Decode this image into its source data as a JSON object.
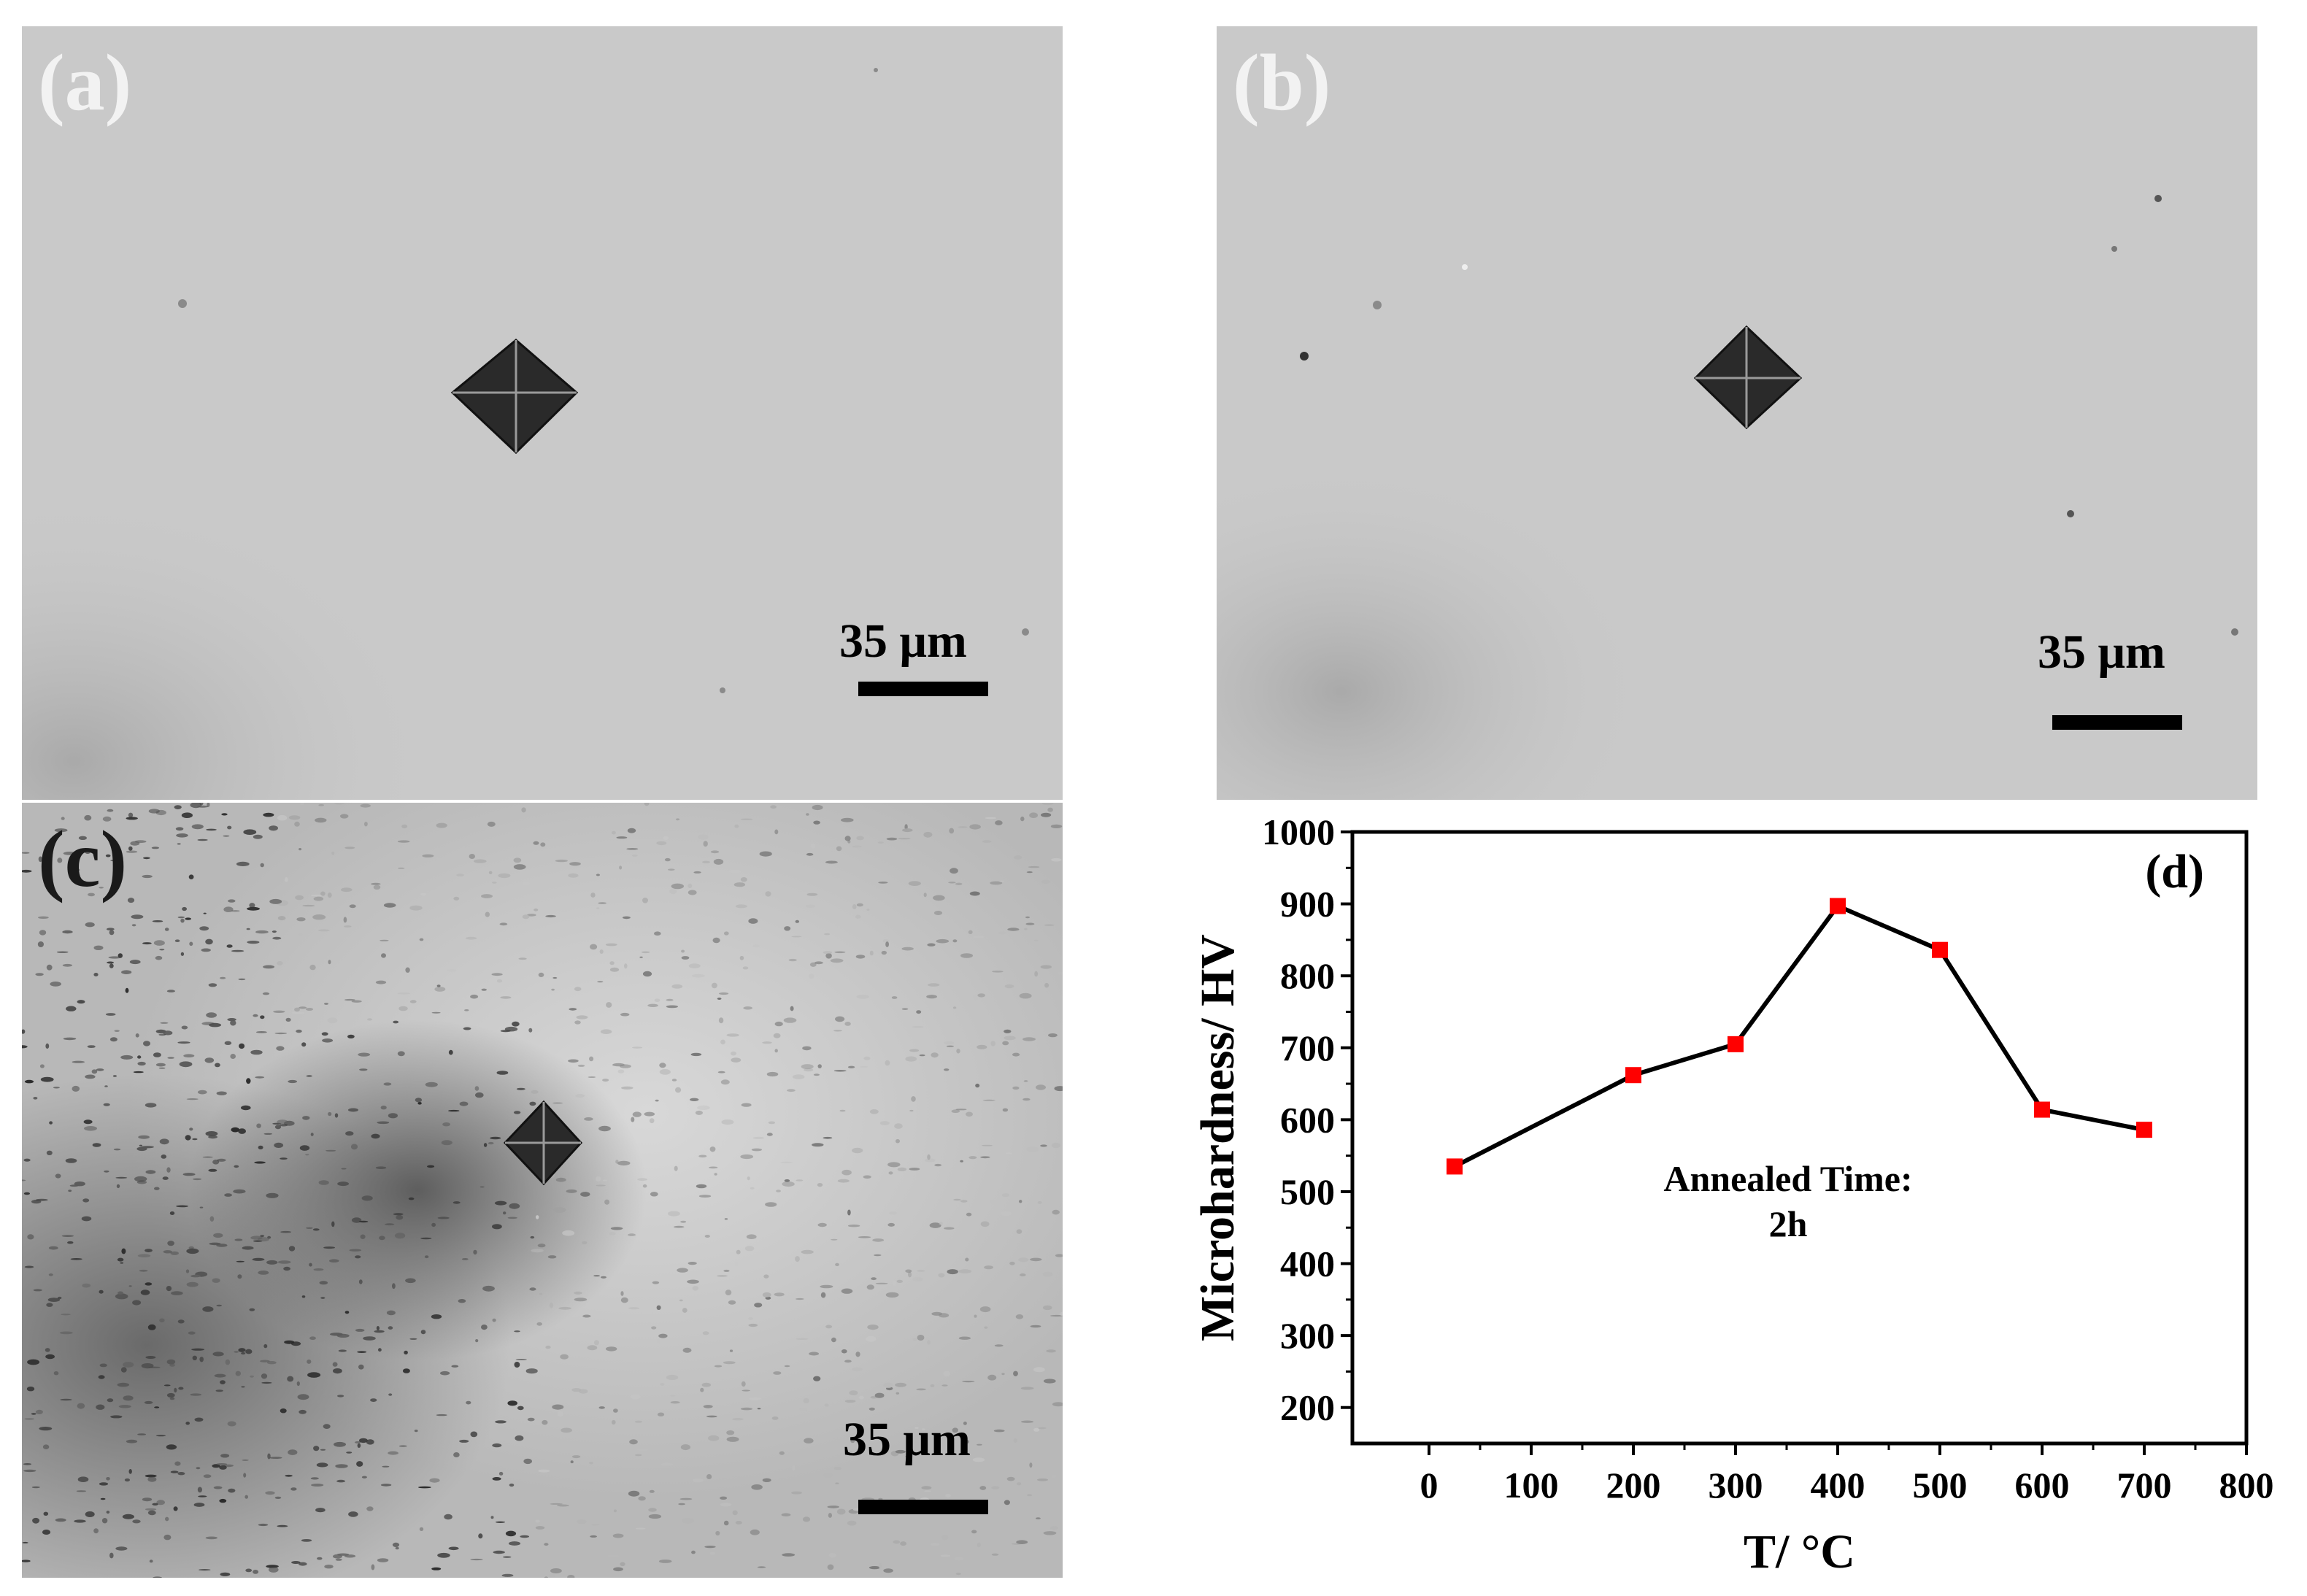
{
  "panels": {
    "a": {
      "label": "(a)",
      "scale": "35 μm"
    },
    "b": {
      "label": "(b)",
      "scale": "35 μm"
    },
    "c": {
      "label": "(c)",
      "scale": "35 μm"
    },
    "d": {
      "label": "(d)"
    }
  },
  "chart_data": {
    "type": "line",
    "title": "",
    "xlabel": "T/ °C",
    "ylabel": "Microhardness/ HV",
    "xlim": [
      -75,
      800
    ],
    "ylim": [
      150,
      1000
    ],
    "xticks": [
      0,
      100,
      200,
      300,
      400,
      500,
      600,
      700,
      800
    ],
    "yticks": [
      200,
      300,
      400,
      500,
      600,
      700,
      800,
      900,
      1000
    ],
    "annotation": [
      "Annealed Time:",
      "2h"
    ],
    "grid": false,
    "series": [
      {
        "name": "",
        "color": "#000000",
        "marker_color": "#ff0000",
        "x": [
          25,
          200,
          300,
          400,
          500,
          600,
          700
        ],
        "y": [
          535,
          662,
          705,
          897,
          836,
          614,
          586
        ]
      }
    ]
  }
}
